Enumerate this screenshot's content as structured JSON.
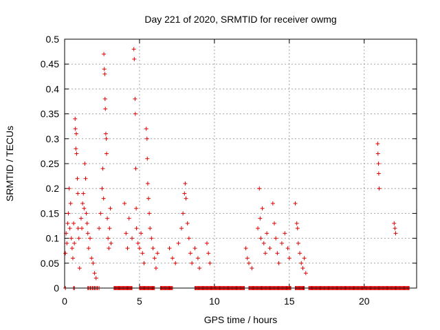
{
  "chart_data": {
    "type": "scatter",
    "title": "Day 221 of 2020, SRMTID for receiver owmg",
    "xlabel": "GPS time / hours",
    "ylabel": "SRMTID / TECUs",
    "xlim": [
      0,
      23.5
    ],
    "ylim": [
      0,
      0.5
    ],
    "xticks": [
      0,
      5,
      10,
      15,
      20
    ],
    "yticks": [
      0,
      0.05,
      0.1,
      0.15,
      0.2,
      0.25,
      0.3,
      0.35,
      0.4,
      0.45,
      0.5
    ],
    "grid": true,
    "marker": "+",
    "marker_color": "#dd0000",
    "series": [
      {
        "name": "SRMTID",
        "points": [
          [
            0.05,
            0.07
          ],
          [
            0.1,
            0.11
          ],
          [
            0.15,
            0.09
          ],
          [
            0.2,
            0.13
          ],
          [
            0.25,
            0.15
          ],
          [
            0.3,
            0.2
          ],
          [
            0.35,
            0.12
          ],
          [
            0.4,
            0.17
          ],
          [
            0.45,
            0.1
          ],
          [
            0.5,
            0.08
          ],
          [
            0.55,
            0.06
          ],
          [
            0.6,
            0.13
          ],
          [
            0.65,
            0.09
          ],
          [
            0.7,
            0.34
          ],
          [
            0.72,
            0.32
          ],
          [
            0.75,
            0.28
          ],
          [
            0.78,
            0.31
          ],
          [
            0.8,
            0.27
          ],
          [
            0.85,
            0.22
          ],
          [
            0.88,
            0.19
          ],
          [
            0.9,
            0.12
          ],
          [
            0.95,
            0.1
          ],
          [
            1.0,
            0.04
          ],
          [
            1.1,
            0.14
          ],
          [
            1.15,
            0.12
          ],
          [
            1.2,
            0.17
          ],
          [
            1.25,
            0.19
          ],
          [
            1.3,
            0.16
          ],
          [
            1.35,
            0.25
          ],
          [
            1.4,
            0.22
          ],
          [
            1.45,
            0.15
          ],
          [
            1.5,
            0.13
          ],
          [
            1.55,
            0.11
          ],
          [
            1.6,
            0.08
          ],
          [
            1.7,
            0.1
          ],
          [
            1.8,
            0.06
          ],
          [
            1.9,
            0.05
          ],
          [
            2.0,
            0.03
          ],
          [
            2.1,
            0.02
          ],
          [
            2.3,
            0.12
          ],
          [
            2.4,
            0.15
          ],
          [
            2.5,
            0.2
          ],
          [
            2.55,
            0.24
          ],
          [
            2.6,
            0.18
          ],
          [
            2.62,
            0.47
          ],
          [
            2.65,
            0.44
          ],
          [
            2.68,
            0.43
          ],
          [
            2.7,
            0.38
          ],
          [
            2.72,
            0.36
          ],
          [
            2.75,
            0.31
          ],
          [
            2.78,
            0.3
          ],
          [
            2.8,
            0.27
          ],
          [
            2.85,
            0.14
          ],
          [
            2.9,
            0.1
          ],
          [
            2.95,
            0.08
          ],
          [
            3.0,
            0.12
          ],
          [
            3.05,
            0.16
          ],
          [
            3.1,
            0.09
          ],
          [
            4.0,
            0.17
          ],
          [
            4.1,
            0.11
          ],
          [
            4.2,
            0.08
          ],
          [
            4.3,
            0.14
          ],
          [
            4.5,
            0.1
          ],
          [
            4.62,
            0.48
          ],
          [
            4.65,
            0.46
          ],
          [
            4.7,
            0.38
          ],
          [
            4.72,
            0.35
          ],
          [
            4.75,
            0.24
          ],
          [
            4.78,
            0.16
          ],
          [
            4.8,
            0.12
          ],
          [
            4.9,
            0.09
          ],
          [
            5.0,
            0.08
          ],
          [
            5.1,
            0.11
          ],
          [
            5.2,
            0.07
          ],
          [
            5.3,
            0.05
          ],
          [
            5.45,
            0.32
          ],
          [
            5.5,
            0.3
          ],
          [
            5.52,
            0.26
          ],
          [
            5.55,
            0.21
          ],
          [
            5.6,
            0.18
          ],
          [
            5.65,
            0.15
          ],
          [
            5.7,
            0.12
          ],
          [
            5.8,
            0.1
          ],
          [
            5.9,
            0.08
          ],
          [
            6.0,
            0.06
          ],
          [
            6.1,
            0.04
          ],
          [
            6.2,
            0.07
          ],
          [
            7.0,
            0.08
          ],
          [
            7.2,
            0.06
          ],
          [
            7.4,
            0.05
          ],
          [
            7.6,
            0.09
          ],
          [
            7.8,
            0.12
          ],
          [
            7.9,
            0.15
          ],
          [
            8.0,
            0.19
          ],
          [
            8.05,
            0.21
          ],
          [
            8.1,
            0.18
          ],
          [
            8.2,
            0.13
          ],
          [
            8.3,
            0.1
          ],
          [
            8.4,
            0.07
          ],
          [
            8.5,
            0.05
          ],
          [
            8.7,
            0.08
          ],
          [
            8.9,
            0.06
          ],
          [
            9.0,
            0.04
          ],
          [
            9.5,
            0.09
          ],
          [
            9.6,
            0.07
          ],
          [
            9.7,
            0.05
          ],
          [
            12.1,
            0.08
          ],
          [
            12.2,
            0.06
          ],
          [
            12.3,
            0.05
          ],
          [
            12.5,
            0.04
          ],
          [
            12.9,
            0.12
          ],
          [
            13.0,
            0.2
          ],
          [
            13.05,
            0.14
          ],
          [
            13.1,
            0.1
          ],
          [
            13.2,
            0.16
          ],
          [
            13.3,
            0.09
          ],
          [
            13.4,
            0.07
          ],
          [
            13.5,
            0.11
          ],
          [
            13.7,
            0.08
          ],
          [
            13.9,
            0.17
          ],
          [
            14.0,
            0.13
          ],
          [
            14.1,
            0.1
          ],
          [
            14.2,
            0.07
          ],
          [
            14.3,
            0.05
          ],
          [
            14.5,
            0.09
          ],
          [
            14.7,
            0.11
          ],
          [
            14.9,
            0.08
          ],
          [
            15.0,
            0.06
          ],
          [
            15.4,
            0.17
          ],
          [
            15.5,
            0.13
          ],
          [
            15.55,
            0.12
          ],
          [
            15.6,
            0.09
          ],
          [
            15.7,
            0.07
          ],
          [
            15.8,
            0.05
          ],
          [
            15.9,
            0.04
          ],
          [
            16.0,
            0.06
          ],
          [
            16.1,
            0.03
          ],
          [
            20.9,
            0.29
          ],
          [
            20.92,
            0.27
          ],
          [
            20.95,
            0.25
          ],
          [
            20.97,
            0.23
          ],
          [
            21.0,
            0.2
          ],
          [
            22.0,
            0.13
          ],
          [
            22.05,
            0.12
          ],
          [
            22.1,
            0.11
          ]
        ]
      }
    ],
    "zero_points_x": [
      0.05,
      0.6,
      0.65,
      1.55,
      1.6,
      1.7,
      1.75,
      1.85,
      1.9,
      2.0,
      2.05,
      2.15,
      2.2,
      2.3,
      3.3,
      3.35,
      3.4,
      3.45,
      3.5,
      3.55,
      3.6,
      3.65,
      3.7,
      3.75,
      3.8,
      3.85,
      3.9,
      3.95,
      4.0,
      4.05,
      4.1,
      4.15,
      4.2,
      4.25,
      4.3,
      4.35,
      4.4,
      4.45,
      4.5,
      5.0,
      5.05,
      5.1,
      5.15,
      5.2,
      5.25,
      5.3,
      5.35,
      5.4,
      5.45,
      5.5,
      5.55,
      5.6,
      5.65,
      5.7,
      5.75,
      5.8,
      5.85,
      5.9,
      5.95,
      6.0,
      6.4,
      6.45,
      6.5,
      6.55,
      6.6,
      6.65,
      6.7,
      6.75,
      6.8,
      6.85,
      6.9,
      6.95,
      7.0,
      7.05,
      7.1,
      7.15,
      7.2,
      8.7,
      8.75,
      8.8,
      8.85,
      8.9,
      8.95,
      9.0,
      9.05,
      9.1,
      9.15,
      9.2,
      9.25,
      9.3,
      9.35,
      9.4,
      9.45,
      9.5,
      9.55,
      9.6,
      9.65,
      9.7,
      9.75,
      9.8,
      9.85,
      9.9,
      9.95,
      10.0,
      10.05,
      10.1,
      10.15,
      10.2,
      10.25,
      10.3,
      10.35,
      10.4,
      10.45,
      10.5,
      10.55,
      10.6,
      10.65,
      10.7,
      10.75,
      10.8,
      10.85,
      10.9,
      10.95,
      11.0,
      11.05,
      11.1,
      11.15,
      11.2,
      11.25,
      11.3,
      11.35,
      11.4,
      11.45,
      11.5,
      11.55,
      11.6,
      11.65,
      11.7,
      11.75,
      11.8,
      11.85,
      11.9,
      11.95,
      12.0,
      12.3,
      12.35,
      12.4,
      12.45,
      12.5,
      12.55,
      12.6,
      12.65,
      12.7,
      12.75,
      12.8,
      12.85,
      12.9,
      12.95,
      13.0,
      13.05,
      13.1,
      13.15,
      13.2,
      13.25,
      13.3,
      13.35,
      13.4,
      13.45,
      13.5,
      13.55,
      13.6,
      13.65,
      13.7,
      13.75,
      13.8,
      13.85,
      13.9,
      13.95,
      14.0,
      14.05,
      14.1,
      14.15,
      14.2,
      14.25,
      14.3,
      14.35,
      14.4,
      14.45,
      14.5,
      14.55,
      14.6,
      14.65,
      14.7,
      14.75,
      14.8,
      14.85,
      14.9,
      14.95,
      15.0,
      15.05,
      15.1,
      15.4,
      15.45,
      15.5,
      15.55,
      15.6,
      15.65,
      15.7,
      15.75,
      15.8,
      15.85,
      15.9,
      15.95,
      16.0,
      16.3,
      16.35,
      16.4,
      16.45,
      16.5,
      16.55,
      16.6,
      16.65,
      16.7,
      16.75,
      16.8,
      16.85,
      16.9,
      16.95,
      17.0,
      17.05,
      17.1,
      17.15,
      17.2,
      17.25,
      17.3,
      17.35,
      17.4,
      17.45,
      17.5,
      17.55,
      17.6,
      17.65,
      17.7,
      17.75,
      17.8,
      17.85,
      17.9,
      17.95,
      18.0,
      18.05,
      18.1,
      18.15,
      18.2,
      18.25,
      18.3,
      18.35,
      18.4,
      18.45,
      18.5,
      18.55,
      18.6,
      18.65,
      18.7,
      18.75,
      18.8,
      18.85,
      18.9,
      18.95,
      19.0,
      19.05,
      19.1,
      19.15,
      19.2,
      19.25,
      19.3,
      19.35,
      19.4,
      19.45,
      19.5,
      19.55,
      19.6,
      19.65,
      19.7,
      19.75,
      19.8,
      19.85,
      19.9,
      19.95,
      20.0,
      20.05,
      20.1,
      20.15,
      20.2,
      20.25,
      20.3,
      20.35,
      20.4,
      20.45,
      20.5,
      20.55,
      20.6,
      20.65,
      20.7,
      20.75,
      20.8,
      20.85,
      20.9,
      20.95,
      21.0,
      21.05,
      21.1,
      21.15,
      21.2,
      21.25,
      21.3,
      21.35,
      21.4,
      21.45,
      21.5,
      21.55,
      21.6,
      21.65,
      21.7,
      21.75,
      21.8,
      21.85,
      21.9,
      21.95,
      22.0,
      22.05,
      22.1,
      22.15,
      22.2,
      22.25,
      22.3,
      22.35,
      22.4,
      22.45,
      22.5,
      22.55,
      22.6,
      22.65,
      22.7,
      22.75,
      22.8,
      22.85,
      22.9,
      22.95,
      23.0
    ]
  }
}
